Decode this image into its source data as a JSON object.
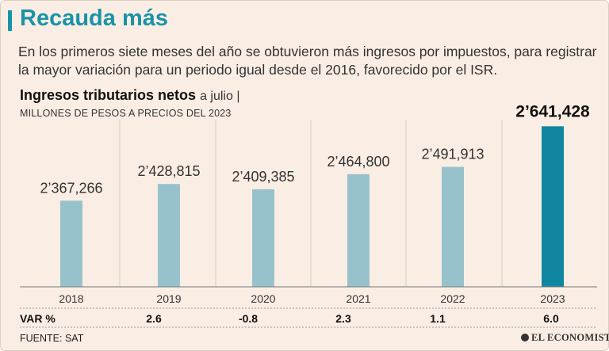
{
  "header": {
    "title": "Recauda más",
    "subtitle": "En los primeros siete meses del año se obtuvieron más ingresos por impuestos, para registrar la mayor variación para un periodo igual desde el 2016, favorecido por el ISR."
  },
  "chart_header": {
    "title_bold": "Ingresos tributarios netos",
    "title_rest": "a julio |",
    "units": "MILLONES DE PESOS A PRECIOS DEL 2023"
  },
  "chart_data": {
    "type": "bar",
    "title": "Ingresos tributarios netos a julio",
    "ylabel": "Millones de pesos a precios del 2023",
    "xlabel": "",
    "categories": [
      "2018",
      "2019",
      "2020",
      "2021",
      "2022",
      "2023"
    ],
    "values": [
      2367266,
      2428815,
      2409385,
      2464800,
      2491913,
      2641428
    ],
    "value_labels": [
      "2’367,266",
      "2’428,815",
      "2’409,385",
      "2’464,800",
      "2’491,913",
      "2’641,428"
    ],
    "highlight_index": 5,
    "ylim": [
      2050000,
      2660000
    ],
    "grid": false,
    "colors": {
      "bar": "#97c2cc",
      "highlight": "#1186a0"
    }
  },
  "variation": {
    "label": "VAR %",
    "values": [
      "2.6",
      "-0.8",
      "2.3",
      "1.1",
      "6.0"
    ]
  },
  "footer": {
    "source": "FUENTE: SAT",
    "brand": "EL ECONOMISTA"
  }
}
